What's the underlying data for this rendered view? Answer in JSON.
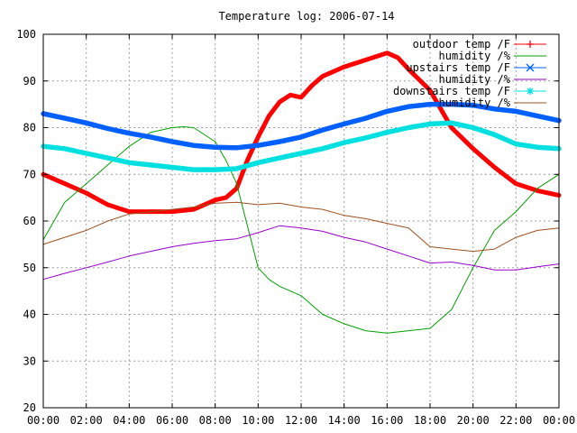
{
  "chart_data": {
    "type": "line",
    "title": "Temperature log: 2006-07-14",
    "xlabel": "",
    "ylabel": "",
    "xlim": [
      0,
      24
    ],
    "ylim": [
      20,
      100
    ],
    "x_ticks": [
      "00:00",
      "02:00",
      "04:00",
      "06:00",
      "08:00",
      "10:00",
      "12:00",
      "14:00",
      "16:00",
      "18:00",
      "20:00",
      "22:00",
      "00:00"
    ],
    "y_ticks": [
      "20",
      "30",
      "40",
      "50",
      "60",
      "70",
      "80",
      "90",
      "100"
    ],
    "grid": true,
    "legend_position": "top-right",
    "series": [
      {
        "name": "outdoor temp /F",
        "color": "#ff0000",
        "marker": "plus",
        "x": [
          0,
          1,
          2,
          3,
          4,
          5,
          6,
          7,
          7.5,
          8,
          8.5,
          9,
          9.5,
          10,
          10.5,
          11,
          11.5,
          12,
          12.5,
          13,
          14,
          15,
          16,
          16.5,
          17,
          18,
          19,
          20,
          21,
          22,
          23,
          24
        ],
        "y": [
          70,
          68,
          66,
          63.5,
          62,
          62,
          62,
          62.5,
          63.5,
          64.5,
          65,
          67,
          73,
          78,
          82.5,
          85.5,
          87,
          86.5,
          89,
          91,
          93,
          94.5,
          96,
          95,
          92.5,
          88,
          80,
          75.5,
          71.5,
          68,
          66.5,
          65.5
        ]
      },
      {
        "name": "humidity /%",
        "color": "#00a000",
        "marker": "none",
        "x": [
          0,
          1,
          2,
          3,
          4,
          5,
          6,
          6.5,
          7,
          8,
          8.5,
          9,
          9.5,
          10,
          10.5,
          11,
          12,
          13,
          14,
          15,
          16,
          17,
          18,
          19,
          20,
          21,
          22,
          23,
          24
        ],
        "y": [
          56,
          64,
          68,
          72,
          76,
          79,
          80,
          80.2,
          80,
          77,
          73,
          68,
          59,
          50,
          47.5,
          46,
          44,
          40,
          38,
          36.5,
          36,
          36.5,
          37,
          41,
          50,
          58,
          62,
          67,
          70
        ]
      },
      {
        "name": "upstairs temp /F",
        "color": "#0060ff",
        "marker": "x",
        "x": [
          0,
          1,
          2,
          3,
          4,
          5,
          6,
          7,
          8,
          9,
          10,
          11,
          12,
          13,
          14,
          15,
          16,
          17,
          18,
          19,
          20,
          21,
          22,
          23,
          24
        ],
        "y": [
          83,
          82,
          81,
          79.8,
          78.8,
          78,
          77,
          76.2,
          75.8,
          75.7,
          76.2,
          77,
          78,
          79.5,
          80.8,
          82,
          83.5,
          84.5,
          85,
          85,
          84.8,
          84,
          83.5,
          82.5,
          81.5
        ]
      },
      {
        "name": "humidity /%",
        "color": "#9900cc",
        "marker": "none",
        "x": [
          0,
          1,
          2,
          3,
          4,
          5,
          6,
          7,
          8,
          9,
          10,
          11,
          12,
          13,
          14,
          15,
          16,
          17,
          18,
          19,
          20,
          21,
          22,
          23,
          24
        ],
        "y": [
          47.5,
          48.8,
          50,
          51.2,
          52.5,
          53.5,
          54.5,
          55.2,
          55.8,
          56.2,
          57.5,
          59,
          58.5,
          57.8,
          56.5,
          55.5,
          54,
          52.5,
          51,
          51.2,
          50.5,
          49.5,
          49.5,
          50.2,
          50.8
        ]
      },
      {
        "name": "downstairs temp /F",
        "color": "#00e0e0",
        "marker": "star",
        "x": [
          0,
          1,
          2,
          3,
          4,
          5,
          6,
          7,
          8,
          9,
          10,
          11,
          12,
          13,
          14,
          15,
          16,
          17,
          18,
          19,
          20,
          21,
          22,
          23,
          24
        ],
        "y": [
          76,
          75.5,
          74.5,
          73.5,
          72.5,
          72,
          71.5,
          71,
          71,
          71.2,
          72.5,
          73.5,
          74.5,
          75.5,
          76.8,
          77.8,
          79,
          80,
          80.8,
          81,
          80,
          78.5,
          76.5,
          75.8,
          75.5
        ]
      },
      {
        "name": "humidity /%",
        "color": "#a05020",
        "marker": "none",
        "x": [
          0,
          1,
          2,
          3,
          4,
          5,
          6,
          7,
          8,
          9,
          10,
          11,
          12,
          13,
          14,
          15,
          16,
          17,
          18,
          19,
          20,
          21,
          22,
          23,
          24
        ],
        "y": [
          55,
          56.5,
          58,
          60,
          61.5,
          62,
          62.5,
          63,
          63.8,
          64,
          63.5,
          63.8,
          63,
          62.5,
          61.2,
          60.5,
          59.5,
          58.5,
          54.5,
          54,
          53.5,
          54,
          56.5,
          58,
          58.5
        ]
      }
    ]
  }
}
